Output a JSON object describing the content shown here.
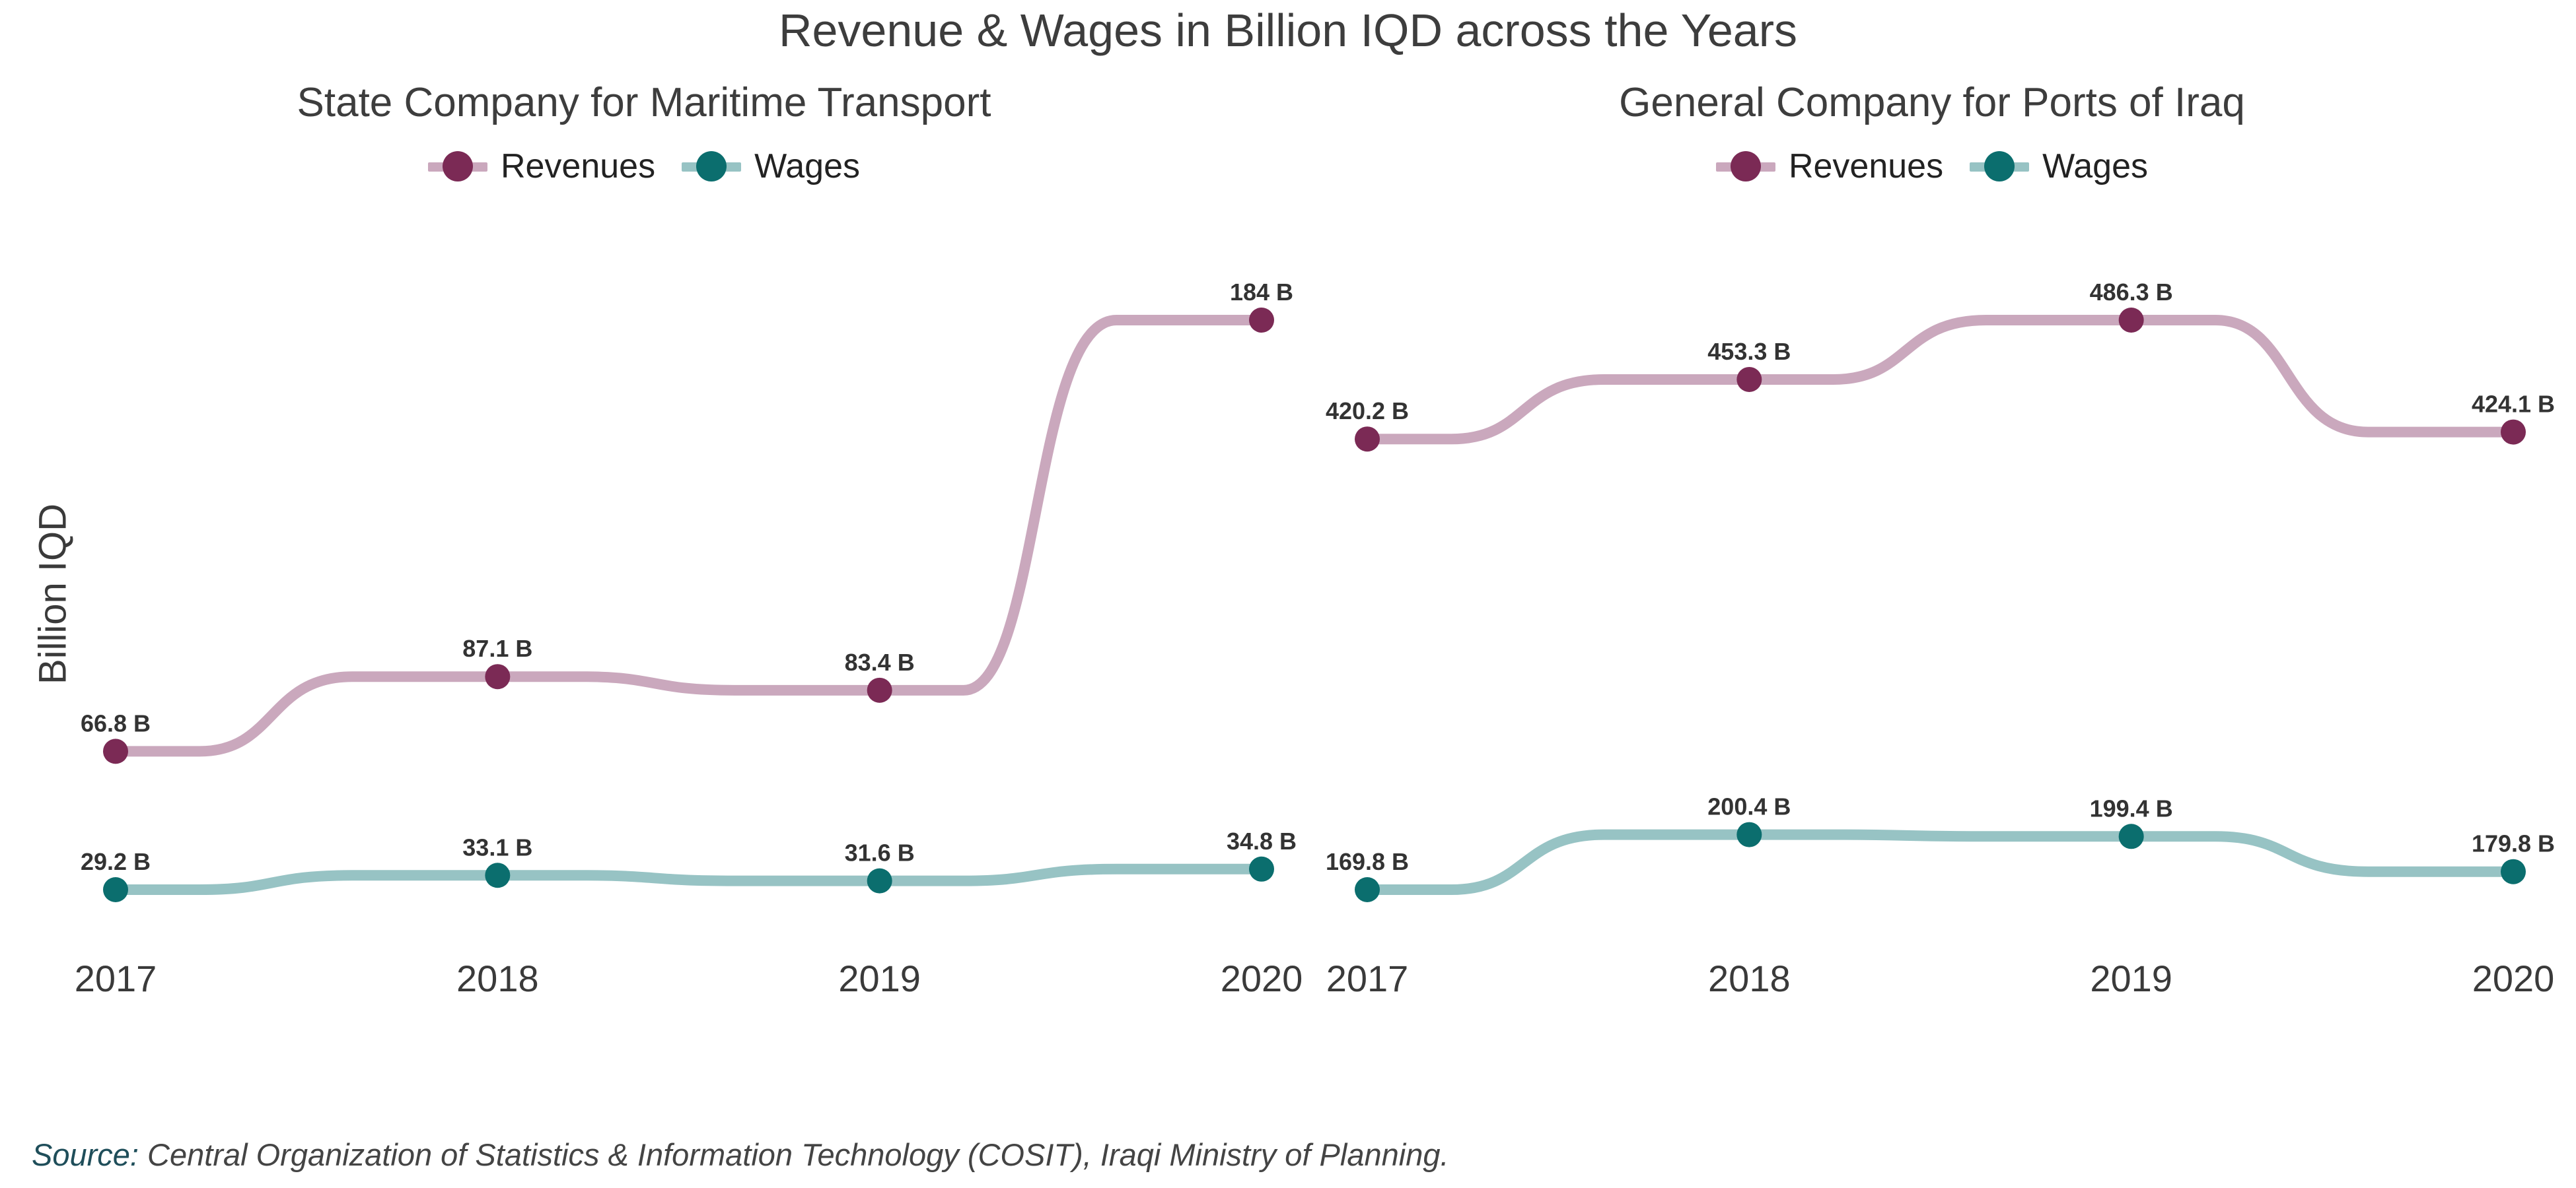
{
  "title": "Revenue & Wages in Billion IQD across the Years",
  "ylabel": "Billion IQD",
  "caption": {
    "source_label": "Source:",
    "text": " Central Organization of Statistics & Information Technology (COSIT), Iraqi Ministry of Planning."
  },
  "colors": {
    "revenues_point": "#7b2a55",
    "revenues_line": "#caa8bd",
    "wages_point": "#0b6e6e",
    "wages_line": "#97c3c4"
  },
  "chart_data": [
    {
      "type": "line",
      "title": "State Company for Maritime Transport",
      "x": [
        "2017",
        "2018",
        "2019",
        "2020"
      ],
      "series": [
        {
          "name": "Revenues",
          "values": [
            66.8,
            87.1,
            83.4,
            184
          ],
          "labels": [
            "66.8 B",
            "87.1 B",
            "83.4 B",
            "184 B"
          ]
        },
        {
          "name": "Wages",
          "values": [
            29.2,
            33.1,
            31.6,
            34.8
          ],
          "labels": [
            "29.2 B",
            "33.1 B",
            "31.6 B",
            "34.8 B"
          ]
        }
      ],
      "legend": "top-center",
      "grid": false
    },
    {
      "type": "line",
      "title": "General Company for Ports of Iraq",
      "x": [
        "2017",
        "2018",
        "2019",
        "2020"
      ],
      "series": [
        {
          "name": "Revenues",
          "values": [
            420.2,
            453.3,
            486.3,
            424.1
          ],
          "labels": [
            "420.2 B",
            "453.3 B",
            "486.3 B",
            "424.1 B"
          ]
        },
        {
          "name": "Wages",
          "values": [
            169.8,
            200.4,
            199.4,
            179.8
          ],
          "labels": [
            "169.8 B",
            "200.4 B",
            "199.4 B",
            "179.8 B"
          ]
        }
      ],
      "legend": "top-center",
      "grid": false
    }
  ]
}
